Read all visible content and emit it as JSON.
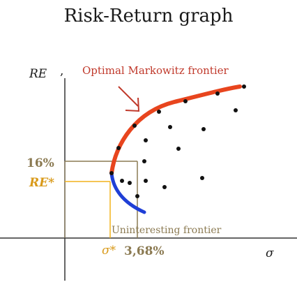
{
  "title": "Risk-Return graph",
  "y_axis_label": "RE",
  "separator": ",",
  "optimal_label": "Optimal Markowitz frontier",
  "uninteresting_label": "Uninteresting frontier",
  "y_value_label": "16%",
  "y_star_label": "RE*",
  "x_star_label": "σ*",
  "x_value_label": "3,68%",
  "x_axis_label": "σ",
  "colors": {
    "optimal_frontier": "#e8451e",
    "uninteresting_frontier": "#1f3fd6",
    "level_16": "#8b7a52",
    "level_re_star": "#f2b21b",
    "arrow": "#c0392b"
  }
}
